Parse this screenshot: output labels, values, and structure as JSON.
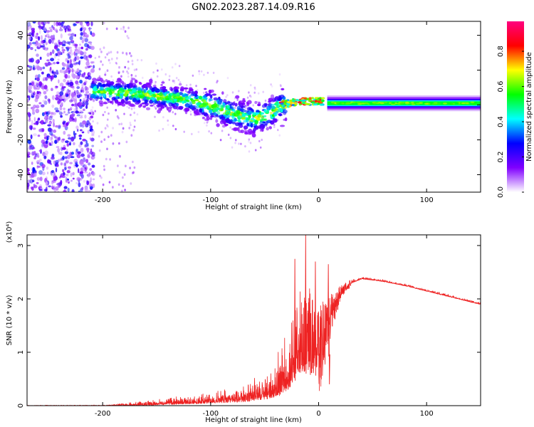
{
  "figure": {
    "title": "GN02.2023.287.14.09.R16"
  },
  "chart_data": [
    {
      "type": "heatmap",
      "xlabel": "Height of straight line (km)",
      "ylabel": "Frequency (Hz)",
      "xlim": [
        -270,
        150
      ],
      "ylim": [
        -50,
        48
      ],
      "xticks": [
        -200,
        -100,
        0,
        100
      ],
      "yticks": [
        -40,
        -20,
        0,
        20,
        40
      ],
      "colorbar": {
        "label": "Normalized spectral amplitude",
        "range": [
          0,
          0.97
        ],
        "ticks": [
          0.0,
          0.2,
          0.4,
          0.6,
          0.8
        ],
        "tick_labels": [
          "0.0",
          "0.2",
          "0.4",
          "0.6",
          "0.8"
        ],
        "colormap": [
          "#ffffff",
          "#8000ff",
          "#0000ff",
          "#00ffff",
          "#00ff00",
          "#ffff00",
          "#ff0000",
          "#ff0080"
        ]
      },
      "ridge": {
        "x": [
          -210,
          -180,
          -150,
          -120,
          -100,
          -80,
          -60,
          -45,
          -35,
          -20,
          0,
          50,
          100,
          150
        ],
        "freq": [
          8,
          7,
          5,
          3,
          0,
          -5,
          -8,
          -5,
          0,
          2,
          2,
          1,
          1,
          1
        ]
      }
    },
    {
      "type": "line",
      "xlabel": "Height of straight line (km)",
      "ylabel": "SNR (10 * v/v)",
      "y_multiplier": "(x10⁴)",
      "xlim": [
        -270,
        150
      ],
      "ylim": [
        0,
        3.2
      ],
      "xticks": [
        -200,
        -100,
        0,
        100
      ],
      "yticks": [
        0,
        1,
        2,
        3
      ],
      "line_color": "#ee2222",
      "envelope": {
        "x": [
          -270,
          -200,
          -160,
          -130,
          -100,
          -70,
          -50,
          -35,
          -25,
          -20,
          -15,
          -10,
          -5,
          0,
          10,
          20,
          30,
          40,
          60,
          80,
          100,
          120,
          140,
          150
        ],
        "base": [
          0.0,
          0.0,
          0.02,
          0.05,
          0.08,
          0.12,
          0.2,
          0.35,
          0.6,
          0.9,
          1.0,
          1.0,
          0.9,
          1.0,
          1.6,
          2.1,
          2.3,
          2.38,
          2.33,
          2.25,
          2.15,
          2.05,
          1.95,
          1.9
        ],
        "noise": [
          0.005,
          0.008,
          0.04,
          0.07,
          0.1,
          0.15,
          0.25,
          0.45,
          0.7,
          0.9,
          1.1,
          1.0,
          0.9,
          0.6,
          0.3,
          0.1,
          0.04,
          0.02,
          0.02,
          0.02,
          0.02,
          0.02,
          0.02,
          0.02
        ]
      },
      "spikes": [
        {
          "x": -22,
          "y": 2.75
        },
        {
          "x": -12,
          "y": 3.2
        },
        {
          "x": -8,
          "y": 2.1
        },
        {
          "x": -3,
          "y": 2.7
        },
        {
          "x": 9,
          "y": 2.65
        },
        {
          "x": 10,
          "y": 0.4
        }
      ]
    }
  ]
}
